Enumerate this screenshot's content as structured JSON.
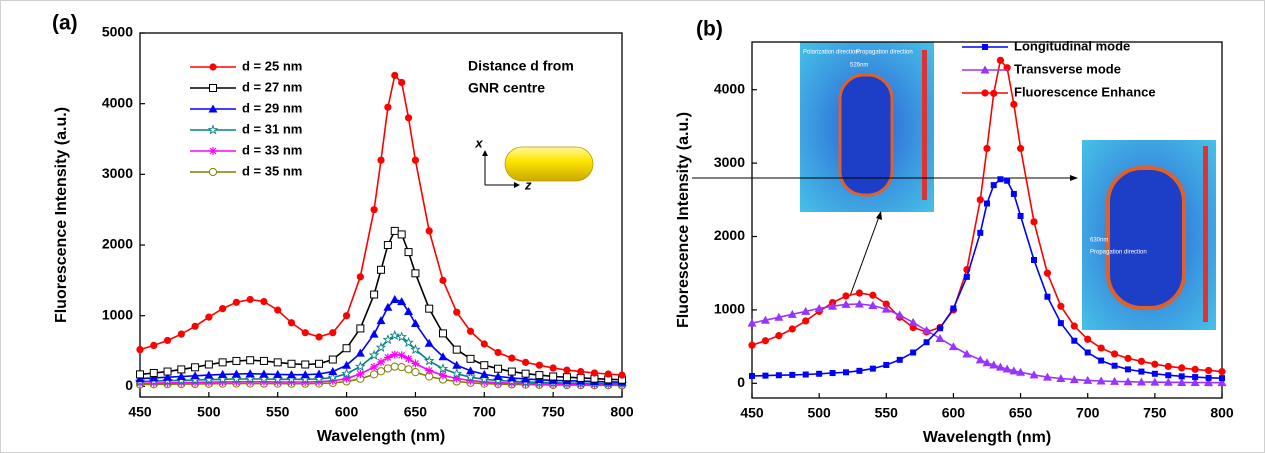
{
  "chart_data": [
    {
      "type": "line",
      "panel_label": "(a)",
      "x_label": "Wavelength (nm)",
      "y_label": "Fluorescence Intensity (a.u.)",
      "annotation": [
        "Distance d from",
        "GNR centre"
      ],
      "inset_labels": [
        "x",
        "z"
      ],
      "xlim": [
        450,
        800
      ],
      "xticks": [
        450,
        500,
        550,
        600,
        650,
        700,
        750,
        800
      ],
      "ylim": [
        -150,
        5000
      ],
      "yticks": [
        0,
        1000,
        2000,
        3000,
        4000,
        5000
      ],
      "x": [
        450,
        460,
        470,
        480,
        490,
        500,
        510,
        520,
        530,
        540,
        550,
        560,
        570,
        580,
        590,
        600,
        610,
        620,
        625,
        630,
        635,
        640,
        645,
        650,
        660,
        670,
        680,
        690,
        700,
        710,
        720,
        730,
        740,
        750,
        760,
        770,
        780,
        790,
        800
      ],
      "series": [
        {
          "name": "d = 25 nm",
          "color": "#ff0000",
          "marker": "circle",
          "values": [
            520,
            580,
            650,
            740,
            850,
            980,
            1100,
            1190,
            1230,
            1200,
            1080,
            900,
            760,
            700,
            760,
            1000,
            1550,
            2500,
            3200,
            3950,
            4400,
            4300,
            3800,
            3200,
            2200,
            1500,
            1050,
            780,
            600,
            480,
            400,
            340,
            300,
            260,
            230,
            210,
            190,
            175,
            160
          ]
        },
        {
          "name": "d = 27 nm",
          "color": "#000000",
          "marker": "square-open",
          "values": [
            170,
            190,
            210,
            240,
            270,
            310,
            340,
            360,
            370,
            360,
            340,
            320,
            310,
            320,
            380,
            540,
            820,
            1300,
            1650,
            2000,
            2200,
            2150,
            1900,
            1600,
            1100,
            750,
            520,
            390,
            300,
            250,
            210,
            180,
            160,
            140,
            130,
            120,
            110,
            100,
            95
          ]
        },
        {
          "name": "d = 29 nm",
          "color": "#0000ff",
          "marker": "triangle",
          "values": [
            110,
            120,
            130,
            140,
            150,
            160,
            170,
            175,
            180,
            175,
            170,
            165,
            165,
            175,
            210,
            300,
            470,
            740,
            930,
            1120,
            1230,
            1200,
            1060,
            890,
            610,
            420,
            300,
            220,
            170,
            140,
            120,
            105,
            95,
            85,
            80,
            75,
            70,
            65,
            60
          ]
        },
        {
          "name": "d = 31 nm",
          "color": "#008080",
          "marker": "star-open",
          "values": [
            70,
            75,
            80,
            85,
            90,
            95,
            100,
            105,
            105,
            105,
            100,
            100,
            100,
            105,
            125,
            180,
            280,
            440,
            550,
            660,
            720,
            700,
            620,
            520,
            360,
            250,
            180,
            130,
            100,
            85,
            72,
            63,
            57,
            52,
            48,
            45,
            42,
            40,
            38
          ]
        },
        {
          "name": "d = 33 nm",
          "color": "#ff00ff",
          "marker": "asterisk",
          "values": [
            45,
            48,
            50,
            53,
            56,
            60,
            63,
            65,
            66,
            65,
            63,
            62,
            62,
            66,
            78,
            112,
            175,
            275,
            345,
            410,
            450,
            440,
            390,
            325,
            225,
            157,
            112,
            82,
            63,
            53,
            45,
            40,
            36,
            33,
            30,
            28,
            26,
            25,
            24
          ]
        },
        {
          "name": "d = 35 nm",
          "color": "#808000",
          "marker": "circle-open",
          "values": [
            28,
            30,
            31,
            33,
            35,
            37,
            39,
            40,
            41,
            40,
            39,
            38,
            38,
            41,
            48,
            70,
            108,
            170,
            214,
            254,
            280,
            273,
            242,
            202,
            140,
            97,
            70,
            51,
            39,
            33,
            28,
            25,
            22,
            20,
            19,
            17,
            16,
            16,
            15
          ]
        }
      ]
    },
    {
      "type": "line",
      "panel_label": "(b)",
      "x_label": "Wavelength (nm)",
      "y_label": "Fluorescence Intensity (a.u.)",
      "inset_texts": [
        "Polarization direction",
        "Propagation direction",
        "526nm",
        "630nm",
        "Propagation direction"
      ],
      "xlim": [
        450,
        800
      ],
      "xticks": [
        450,
        500,
        550,
        600,
        650,
        700,
        750,
        800
      ],
      "ylim": [
        -200,
        4650
      ],
      "yticks": [
        0,
        1000,
        2000,
        3000,
        4000
      ],
      "x": [
        450,
        460,
        470,
        480,
        490,
        500,
        510,
        520,
        530,
        540,
        550,
        560,
        570,
        580,
        590,
        600,
        610,
        620,
        625,
        630,
        635,
        640,
        645,
        650,
        660,
        670,
        680,
        690,
        700,
        710,
        720,
        730,
        740,
        750,
        760,
        770,
        780,
        790,
        800
      ],
      "series": [
        {
          "name": "Longitudinal mode",
          "color": "#0000ff",
          "marker": "square",
          "values": [
            100,
            105,
            110,
            115,
            120,
            130,
            140,
            150,
            170,
            200,
            250,
            320,
            420,
            560,
            750,
            1020,
            1450,
            2050,
            2450,
            2700,
            2780,
            2760,
            2580,
            2280,
            1680,
            1180,
            820,
            580,
            420,
            310,
            240,
            190,
            160,
            130,
            110,
            95,
            85,
            75,
            70
          ]
        },
        {
          "name": "Transverse mode",
          "color": "#9933ff",
          "marker": "triangle",
          "values": [
            820,
            860,
            900,
            940,
            980,
            1020,
            1050,
            1075,
            1080,
            1060,
            1010,
            930,
            830,
            720,
            610,
            500,
            400,
            320,
            280,
            250,
            220,
            195,
            170,
            150,
            115,
            85,
            65,
            50,
            40,
            32,
            26,
            22,
            18,
            16,
            14,
            12,
            11,
            10,
            9
          ]
        },
        {
          "name": "Fluorescence Enhance",
          "color": "#ff0000",
          "marker": "circle",
          "values": [
            520,
            580,
            650,
            740,
            850,
            980,
            1100,
            1190,
            1230,
            1200,
            1080,
            900,
            760,
            700,
            760,
            1000,
            1550,
            2500,
            3200,
            3950,
            4400,
            4300,
            3800,
            3200,
            2200,
            1500,
            1050,
            780,
            600,
            480,
            400,
            340,
            300,
            260,
            230,
            210,
            190,
            175,
            160
          ]
        }
      ]
    }
  ]
}
